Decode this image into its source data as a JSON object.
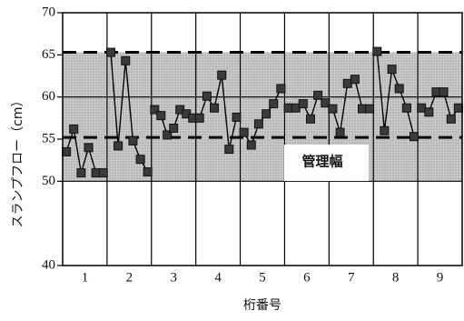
{
  "chart_data": {
    "type": "line",
    "title": "",
    "xlabel": "桁番号",
    "ylabel": "スランプフロー（cm）",
    "ylim": [
      40,
      70
    ],
    "yticks": [
      40,
      50,
      55,
      60,
      65,
      70
    ],
    "categories": [
      "1",
      "2",
      "3",
      "4",
      "5",
      "6",
      "7",
      "8",
      "9"
    ],
    "groups": [
      [
        53.5,
        56.2,
        51.0,
        54.0,
        51.0,
        51.0
      ],
      [
        65.3,
        54.2,
        64.3,
        54.8,
        52.6,
        51.1
      ],
      [
        58.5,
        57.8,
        55.5,
        56.3,
        58.5,
        58.0,
        57.5
      ],
      [
        57.5,
        60.1,
        58.7,
        62.6,
        53.8,
        57.6
      ],
      [
        55.8,
        54.3,
        56.8,
        58.0,
        59.2,
        61.0
      ],
      [
        58.7,
        58.7,
        59.2,
        57.4,
        60.2,
        59.3
      ],
      [
        58.6,
        55.8,
        61.6,
        62.1,
        58.6,
        58.6
      ],
      [
        65.4,
        56.0,
        63.3,
        61.0,
        58.7,
        55.3
      ],
      [
        58.7,
        58.2,
        60.6,
        60.6,
        57.4,
        58.7
      ]
    ],
    "band": {
      "range": [
        50,
        65.3
      ],
      "label": "管理幅"
    },
    "dashed_lines": [
      65.3,
      55.2
    ],
    "solid_gridlines": [
      50,
      60
    ],
    "grid": false
  },
  "colors": {
    "band": "#cbcbcb",
    "band_dot": "#7a7a7a",
    "marker_fill": "#3a3a3a",
    "marker_stroke": "#111111",
    "line": "#000000"
  }
}
